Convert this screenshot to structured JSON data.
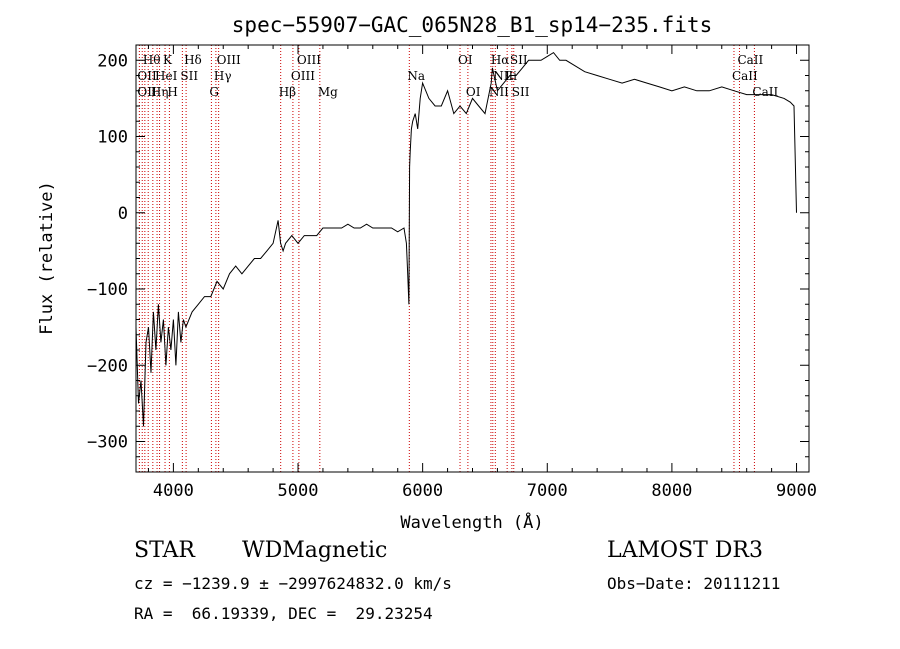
{
  "chart_data": {
    "type": "line",
    "title": "spec−55907−GAC_065N28_B1_sp14−235.fits",
    "xlabel": "Wavelength (Å)",
    "ylabel": "Flux (relative)",
    "xlim": [
      3700,
      9100
    ],
    "ylim": [
      -340,
      220
    ],
    "xticks": [
      4000,
      5000,
      6000,
      7000,
      8000,
      9000
    ],
    "xtick_labels": [
      "4000",
      "5000",
      "6000",
      "7000",
      "8000",
      "9000"
    ],
    "yticks": [
      200,
      100,
      0,
      -100,
      -200,
      -300
    ],
    "ytick_labels": [
      "200",
      "100",
      "0",
      "−100",
      "−200",
      "−300"
    ],
    "grid": false,
    "series": [
      {
        "name": "flux",
        "x": [
          3700,
          3720,
          3740,
          3760,
          3780,
          3800,
          3820,
          3840,
          3860,
          3880,
          3900,
          3920,
          3940,
          3960,
          3980,
          4000,
          4020,
          4040,
          4060,
          4080,
          4100,
          4150,
          4200,
          4250,
          4300,
          4350,
          4400,
          4450,
          4500,
          4550,
          4600,
          4650,
          4700,
          4750,
          4800,
          4840,
          4860,
          4880,
          4900,
          4950,
          5000,
          5050,
          5100,
          5150,
          5200,
          5250,
          5300,
          5350,
          5400,
          5450,
          5500,
          5550,
          5600,
          5650,
          5700,
          5750,
          5800,
          5850,
          5870,
          5880,
          5890,
          5895,
          5900,
          5910,
          5920,
          5940,
          5960,
          5980,
          6000,
          6050,
          6100,
          6150,
          6200,
          6250,
          6300,
          6350,
          6400,
          6450,
          6500,
          6550,
          6560,
          6600,
          6650,
          6700,
          6750,
          6800,
          6850,
          6900,
          6950,
          7000,
          7050,
          7100,
          7150,
          7200,
          7300,
          7400,
          7500,
          7600,
          7700,
          7800,
          7900,
          8000,
          8100,
          8200,
          8300,
          8400,
          8500,
          8600,
          8700,
          8800,
          8900,
          8950,
          8980,
          9000
        ],
        "y": [
          -150,
          -250,
          -220,
          -280,
          -170,
          -150,
          -210,
          -130,
          -180,
          -120,
          -170,
          -140,
          -200,
          -150,
          -180,
          -140,
          -200,
          -130,
          -170,
          -140,
          -150,
          -130,
          -120,
          -110,
          -110,
          -90,
          -100,
          -80,
          -70,
          -80,
          -70,
          -60,
          -60,
          -50,
          -40,
          -10,
          -40,
          -50,
          -40,
          -30,
          -40,
          -30,
          -30,
          -30,
          -20,
          -20,
          -20,
          -20,
          -15,
          -20,
          -20,
          -15,
          -20,
          -20,
          -20,
          -20,
          -25,
          -20,
          -40,
          -80,
          -120,
          60,
          80,
          110,
          120,
          130,
          110,
          150,
          170,
          150,
          140,
          140,
          160,
          130,
          140,
          130,
          150,
          140,
          130,
          170,
          190,
          160,
          170,
          180,
          180,
          190,
          200,
          200,
          200,
          205,
          210,
          200,
          200,
          195,
          185,
          180,
          175,
          170,
          175,
          170,
          165,
          160,
          165,
          160,
          160,
          165,
          160,
          155,
          155,
          155,
          150,
          145,
          140,
          0
        ]
      }
    ],
    "lines": [
      {
        "x": 3727,
        "label": "OII"
      },
      {
        "x": 3750,
        "label": "OII"
      },
      {
        "x": 3771,
        "label": "Hθ"
      },
      {
        "x": 3798,
        "label": "Hη"
      },
      {
        "x": 3835,
        "label": "Hη"
      },
      {
        "x": 3869,
        "label": "HeI"
      },
      {
        "x": 3889,
        "label": "HeI"
      },
      {
        "x": 3933,
        "label": "K"
      },
      {
        "x": 3968,
        "label": "H"
      },
      {
        "x": 4072,
        "label": "SII"
      },
      {
        "x": 4102,
        "label": "Hδ"
      },
      {
        "x": 4305,
        "label": "G"
      },
      {
        "x": 4341,
        "label": "Hγ"
      },
      {
        "x": 4363,
        "label": "OIII"
      },
      {
        "x": 4861,
        "label": "Hβ"
      },
      {
        "x": 4959,
        "label": "OIII"
      },
      {
        "x": 5007,
        "label": "OIII"
      },
      {
        "x": 5175,
        "label": "Mg"
      },
      {
        "x": 5893,
        "label": "Na"
      },
      {
        "x": 6300,
        "label": "OI"
      },
      {
        "x": 6363,
        "label": "OI"
      },
      {
        "x": 6548,
        "label": "NII"
      },
      {
        "x": 6563,
        "label": "Hα"
      },
      {
        "x": 6583,
        "label": "NII"
      },
      {
        "x": 6678,
        "label": "Li"
      },
      {
        "x": 6716,
        "label": "SII"
      },
      {
        "x": 6731,
        "label": "SII"
      },
      {
        "x": 8498,
        "label": "CaII"
      },
      {
        "x": 8542,
        "label": "CaII"
      },
      {
        "x": 8662,
        "label": "CaII"
      }
    ],
    "annotations": [
      {
        "text": "OII",
        "x": 3727,
        "row": 1
      },
      {
        "text": "Hθ",
        "x": 3771,
        "row": 0
      },
      {
        "text": "OII",
        "x": 3727,
        "row": 2
      },
      {
        "text": "Hη",
        "x": 3835,
        "row": 2
      },
      {
        "text": "HeI",
        "x": 3869,
        "row": 1
      },
      {
        "text": "K",
        "x": 3933,
        "row": 0
      },
      {
        "text": "H",
        "x": 3968,
        "row": 2
      },
      {
        "text": "SII",
        "x": 4072,
        "row": 1
      },
      {
        "text": "Hδ",
        "x": 4102,
        "row": 0
      },
      {
        "text": "OIII",
        "x": 4363,
        "row": 0
      },
      {
        "text": "Hγ",
        "x": 4341,
        "row": 1
      },
      {
        "text": "G",
        "x": 4305,
        "row": 2
      },
      {
        "text": "Hβ",
        "x": 4861,
        "row": 2
      },
      {
        "text": "OIII",
        "x": 5007,
        "row": 0
      },
      {
        "text": "OIII",
        "x": 4959,
        "row": 1
      },
      {
        "text": "Mg",
        "x": 5175,
        "row": 2
      },
      {
        "text": "Na",
        "x": 5893,
        "row": 1
      },
      {
        "text": "OI",
        "x": 6300,
        "row": 0
      },
      {
        "text": "OI",
        "x": 6363,
        "row": 2
      },
      {
        "text": "Hα",
        "x": 6563,
        "row": 0
      },
      {
        "text": "SII",
        "x": 6716,
        "row": 0
      },
      {
        "text": "NII",
        "x": 6583,
        "row": 1
      },
      {
        "text": "Li",
        "x": 6678,
        "row": 1
      },
      {
        "text": "NII",
        "x": 6548,
        "row": 2
      },
      {
        "text": "SII",
        "x": 6731,
        "row": 2
      },
      {
        "text": "CaII",
        "x": 8542,
        "row": 0
      },
      {
        "text": "CaII",
        "x": 8498,
        "row": 1
      },
      {
        "text": "CaII",
        "x": 8662,
        "row": 2
      }
    ]
  },
  "info": {
    "class_label": "STAR",
    "subclass_label": "WDMagnetic",
    "survey": "LAMOST DR3",
    "cz_line": "cz = −1239.9 ± −2997624832.0 km/s",
    "obs_date": "Obs−Date: 20111211",
    "radec_line": "RA =  66.19339, DEC =  29.23254"
  },
  "colors": {
    "line": "#000000",
    "marker_line": "#cc0000",
    "axis": "#000000"
  }
}
